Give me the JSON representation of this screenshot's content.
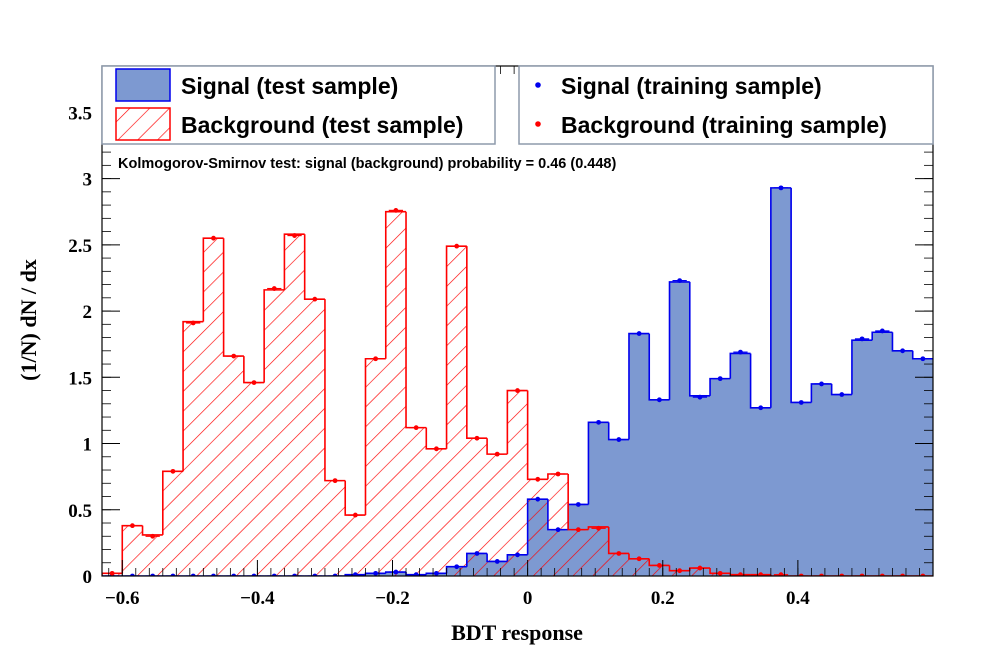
{
  "chart_data": {
    "type": "bar",
    "xlabel": "BDT response",
    "ylabel": "(1/N) dN / dx",
    "xlim": [
      -0.63,
      0.6
    ],
    "ylim": [
      0,
      3.85
    ],
    "xticks": [
      "−0.6",
      "−0.4",
      "−0.2",
      "0",
      "0.2",
      "0.4"
    ],
    "xtick_values": [
      -0.6,
      -0.4,
      -0.2,
      0,
      0.2,
      0.4
    ],
    "yticks": [
      "0",
      "0.5",
      "1",
      "1.5",
      "2",
      "2.5",
      "3",
      "3.5"
    ],
    "ytick_values": [
      0,
      0.5,
      1,
      1.5,
      2,
      2.5,
      3,
      3.5
    ],
    "bins": {
      "start": -0.63,
      "width": 0.03,
      "count": 41
    },
    "series": [
      {
        "name": "Signal (test sample)",
        "style": "filled",
        "color": "#7d99d1",
        "edge": "#0000ee",
        "values": [
          0,
          0,
          0,
          0,
          0,
          0,
          0,
          0,
          0,
          0,
          0,
          0,
          0.01,
          0.02,
          0.03,
          0.01,
          0.02,
          0.07,
          0.17,
          0.11,
          0.16,
          0.58,
          0.35,
          0.54,
          1.16,
          1.03,
          1.83,
          1.33,
          2.22,
          1.36,
          1.49,
          1.68,
          1.27,
          2.93,
          1.31,
          1.45,
          1.37,
          1.78,
          1.84,
          1.7,
          1.64
        ]
      },
      {
        "name": "Background (test sample)",
        "style": "hatched",
        "color": "#ff0000",
        "values": [
          0.02,
          0.38,
          0.31,
          0.79,
          1.92,
          2.55,
          1.66,
          1.46,
          2.16,
          2.58,
          2.09,
          0.72,
          0.46,
          1.64,
          2.75,
          1.12,
          0.96,
          2.49,
          1.04,
          0.92,
          1.4,
          0.73,
          0.77,
          0.35,
          0.37,
          0.17,
          0.13,
          0.08,
          0.04,
          0.06,
          0.02,
          0.01,
          0.01,
          0,
          0,
          0,
          0,
          0,
          0,
          0,
          0
        ]
      },
      {
        "name": "Signal (training sample)",
        "style": "points",
        "color": "#0000ee",
        "values": [
          0,
          0,
          0,
          0,
          0,
          0,
          0,
          0,
          0,
          0,
          0,
          0,
          0.01,
          0.02,
          0.03,
          0.01,
          0.02,
          0.07,
          0.17,
          0.11,
          0.16,
          0.58,
          0.35,
          0.54,
          1.16,
          1.03,
          1.83,
          1.33,
          2.23,
          1.35,
          1.49,
          1.69,
          1.27,
          2.93,
          1.31,
          1.45,
          1.37,
          1.79,
          1.85,
          1.7,
          1.64
        ]
      },
      {
        "name": "Background (training sample)",
        "style": "points",
        "color": "#ff0000",
        "values": [
          0.02,
          0.38,
          0.3,
          0.79,
          1.91,
          2.55,
          1.66,
          1.46,
          2.17,
          2.57,
          2.09,
          0.72,
          0.46,
          1.64,
          2.76,
          1.12,
          0.96,
          2.49,
          1.04,
          0.92,
          1.4,
          0.73,
          0.77,
          0.35,
          0.36,
          0.17,
          0.13,
          0.08,
          0.04,
          0.06,
          0.02,
          0.01,
          0.01,
          0.01,
          0,
          0,
          0,
          0,
          0,
          0,
          0
        ]
      }
    ],
    "legend": {
      "placement": "top",
      "entries": [
        "Signal (test sample)",
        "Background (test sample)",
        "Signal (training sample)",
        "Background (training sample)"
      ]
    },
    "annotation": "Kolmogorov-Smirnov test: signal (background) probability =  0.46 (0.448)"
  }
}
